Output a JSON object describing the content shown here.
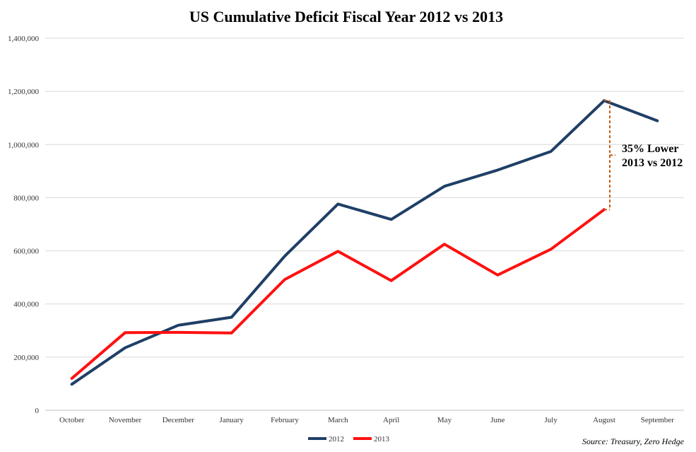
{
  "chart_data": {
    "type": "line",
    "title": "US Cumulative Deficit Fiscal Year 2012 vs 2013",
    "xlabel": "",
    "ylabel": "",
    "categories": [
      "October",
      "November",
      "December",
      "January",
      "February",
      "March",
      "April",
      "May",
      "June",
      "July",
      "August",
      "September"
    ],
    "ylim": [
      0,
      1400000
    ],
    "y_ticks": [
      0,
      200000,
      400000,
      600000,
      800000,
      1000000,
      1200000,
      1400000
    ],
    "y_tick_labels": [
      "0",
      "200,000",
      "400,000",
      "600,000",
      "800,000",
      "1,000,000",
      "1,200,000",
      "1,400,000"
    ],
    "grid": true,
    "series": [
      {
        "name": "2012",
        "color": "#1f3f66",
        "values": [
          98000,
          235000,
          320000,
          350000,
          580000,
          776000,
          718000,
          843000,
          904000,
          974000,
          1165000,
          1089000
        ]
      },
      {
        "name": "2013",
        "color": "#ff1010",
        "values": [
          120000,
          292000,
          293000,
          291000,
          492000,
          598000,
          488000,
          625000,
          509000,
          606000,
          755000,
          null
        ]
      }
    ],
    "annotation": {
      "line1": "35% Lower",
      "line2": "2013 vs 2012",
      "category": "August",
      "color": "#c55a11"
    },
    "legend": {
      "position": "bottom-center"
    },
    "source": "Source: Treasury, Zero Hedge"
  }
}
